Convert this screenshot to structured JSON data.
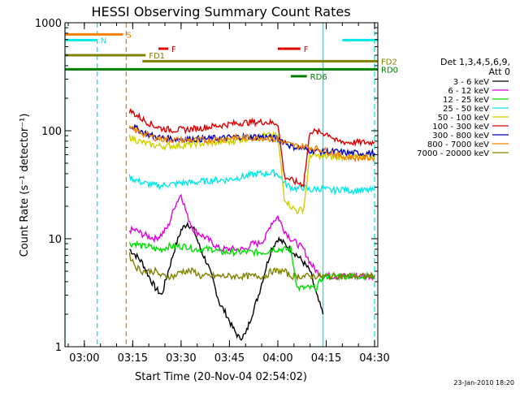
{
  "chart_data": {
    "type": "line",
    "title": "HESSI Observing Summary Count Rates",
    "xlabel": "Start Time (20-Nov-04 02:54:02)",
    "ylabel": "Count Rate (s⁻¹ detector⁻¹)",
    "yscale": "log",
    "ylim": [
      1,
      1000
    ],
    "xlim_minutes": [
      0,
      97
    ],
    "x_ticks": [
      {
        "label": "03:00",
        "minute": 6
      },
      {
        "label": "03:15",
        "minute": 21
      },
      {
        "label": "03:30",
        "minute": 36
      },
      {
        "label": "03:45",
        "minute": 51
      },
      {
        "label": "04:00",
        "minute": 66
      },
      {
        "label": "04:15",
        "minute": 81
      },
      {
        "label": "04:30",
        "minute": 96
      }
    ],
    "y_ticks": [
      {
        "label": "1",
        "value": 1
      },
      {
        "label": "10",
        "value": 10
      },
      {
        "label": "100",
        "value": 100
      },
      {
        "label": "1000",
        "value": 1000
      }
    ],
    "legend": {
      "position": "right",
      "header": [
        "Det 1,3,4,5,6,9,",
        "Att 0"
      ],
      "entries": [
        {
          "label": "3 - 6 keV",
          "color": "#000000"
        },
        {
          "label": "6 - 12 keV",
          "color": "#e000e0"
        },
        {
          "label": "12 - 25 keV",
          "color": "#00e000"
        },
        {
          "label": "25 - 50 keV",
          "color": "#00e8e8"
        },
        {
          "label": "50 - 100 keV",
          "color": "#d0d000"
        },
        {
          "label": "100 - 300 keV",
          "color": "#e00000"
        },
        {
          "label": "300 - 800 keV",
          "color": "#0000c0"
        },
        {
          "label": "800 - 7000 keV",
          "color": "#f08000"
        },
        {
          "label": "7000 - 20000 keV",
          "color": "#808000"
        }
      ]
    },
    "flags": [
      {
        "label": "S",
        "color": "#f08000",
        "start": 0,
        "end": 18,
        "level": 780
      },
      {
        "label": "N",
        "color": "#00e8e8",
        "start": 0,
        "end": 10,
        "level": 690
      },
      {
        "label": "F",
        "color": "#e00000",
        "start": 29,
        "end": 32,
        "level": 575
      },
      {
        "label": "F",
        "color": "#e00000",
        "start": 66,
        "end": 73,
        "level": 575
      },
      {
        "label": "",
        "color": "#00e8e8",
        "start": 86,
        "end": 97,
        "level": 690
      },
      {
        "label": "FD1",
        "color": "#808000",
        "start": 0,
        "end": 25,
        "level": 500
      },
      {
        "label": "FD2",
        "color": "#808000",
        "start": 24,
        "end": 97,
        "level": 440
      },
      {
        "label": "RD0",
        "color": "#008000",
        "start": 0,
        "end": 97,
        "level": 370
      },
      {
        "label": "RD6",
        "color": "#008000",
        "start": 70,
        "end": 75,
        "level": 320
      }
    ],
    "vlines": [
      {
        "minute": 0,
        "color": "#00e8e8"
      },
      {
        "minute": 10,
        "color": "#00e8e8",
        "dashed": true
      },
      {
        "minute": 19,
        "color": "#f08000",
        "dashed": true
      },
      {
        "minute": 80,
        "color": "#00e8e8"
      },
      {
        "minute": 96,
        "color": "#00e8e8",
        "dashed": true
      }
    ],
    "series": [
      {
        "name": "3 - 6 keV",
        "color": "#000000",
        "x": [
          20,
          22,
          24,
          26,
          28,
          30,
          32,
          34,
          36,
          38,
          40,
          42,
          44,
          46,
          48,
          50,
          52,
          54,
          56,
          58,
          60,
          62,
          64,
          66,
          68,
          70,
          72,
          74,
          76,
          78,
          80
        ],
        "y": [
          8,
          7,
          6,
          4.5,
          3.5,
          3,
          5,
          8,
          12,
          14,
          12,
          8,
          6,
          4,
          2.5,
          2,
          1.5,
          1.2,
          1.3,
          2,
          3,
          5,
          8,
          10,
          9,
          8,
          7,
          6,
          5,
          3,
          2
        ]
      },
      {
        "name": "6 - 12 keV",
        "color": "#e000e0",
        "x": [
          20,
          22,
          24,
          26,
          28,
          30,
          32,
          34,
          36,
          38,
          40,
          42,
          44,
          46,
          48,
          50,
          52,
          54,
          56,
          58,
          60,
          62,
          64,
          66,
          68,
          70,
          72,
          74,
          76,
          78,
          80,
          82,
          84,
          86,
          88,
          90,
          92,
          94,
          96
        ],
        "y": [
          12,
          12,
          11,
          10.5,
          10,
          11,
          13,
          20,
          26,
          16,
          12,
          11,
          10,
          9,
          8,
          8,
          8,
          8,
          8,
          9,
          9,
          10,
          14,
          16,
          12,
          10,
          9,
          8,
          6,
          5,
          4.5,
          4.5,
          4.5,
          4.5,
          4.5,
          4.5,
          4.5,
          4.5,
          4.5
        ]
      },
      {
        "name": "12 - 25 keV",
        "color": "#00e000",
        "x": [
          20,
          22,
          24,
          26,
          28,
          30,
          32,
          34,
          36,
          38,
          40,
          42,
          44,
          46,
          48,
          50,
          52,
          54,
          56,
          58,
          60,
          62,
          64,
          66,
          68,
          70,
          72,
          74,
          76,
          78,
          80,
          82,
          84,
          86,
          88,
          90,
          92,
          94,
          96
        ],
        "y": [
          9,
          9,
          8.5,
          8.5,
          8,
          8,
          8.5,
          8.5,
          8.5,
          8.5,
          8,
          8,
          8,
          8,
          7.5,
          7.5,
          7.5,
          7.5,
          7.5,
          7.5,
          7.5,
          7.5,
          8,
          8,
          8,
          8,
          3.5,
          3.5,
          3.5,
          3.5,
          4.5,
          4.5,
          4.5,
          4.5,
          4.5,
          4.5,
          4.5,
          4.5,
          4.5
        ]
      },
      {
        "name": "25 - 50 keV",
        "color": "#00e8e8",
        "x": [
          20,
          22,
          24,
          26,
          28,
          30,
          32,
          34,
          36,
          38,
          40,
          42,
          44,
          46,
          48,
          50,
          52,
          54,
          56,
          58,
          60,
          62,
          64,
          66,
          68,
          70,
          72,
          74,
          76,
          78,
          80,
          82,
          84,
          86,
          88,
          90,
          92,
          94,
          96
        ],
        "y": [
          37,
          35,
          33,
          32,
          31,
          31,
          32,
          32,
          33,
          33,
          33,
          34,
          34,
          35,
          35,
          35,
          36,
          37,
          38,
          39,
          40,
          40,
          41,
          40,
          33,
          30,
          29,
          30,
          28,
          29,
          29,
          28,
          28,
          29,
          28,
          28,
          28,
          28,
          28
        ]
      },
      {
        "name": "50 - 100 keV",
        "color": "#d0d000",
        "x": [
          20,
          22,
          24,
          26,
          28,
          30,
          32,
          34,
          36,
          38,
          40,
          42,
          44,
          46,
          48,
          50,
          52,
          54,
          56,
          58,
          60,
          62,
          64,
          66,
          68,
          70,
          72,
          74,
          76,
          78,
          80,
          82,
          84,
          86,
          88,
          90,
          92,
          94,
          96
        ],
        "y": [
          88,
          82,
          78,
          75,
          73,
          72,
          72,
          73,
          73,
          74,
          75,
          76,
          76,
          77,
          78,
          79,
          80,
          82,
          84,
          86,
          88,
          90,
          90,
          88,
          24,
          20,
          18,
          19,
          60,
          58,
          58,
          57,
          57,
          57,
          57,
          57,
          57,
          57,
          57
        ]
      },
      {
        "name": "100 - 300 keV",
        "color": "#e00000",
        "x": [
          20,
          22,
          24,
          26,
          28,
          30,
          32,
          34,
          36,
          38,
          40,
          42,
          44,
          46,
          48,
          50,
          52,
          54,
          56,
          58,
          60,
          62,
          64,
          66,
          68,
          70,
          72,
          74,
          76,
          78,
          80,
          82,
          84,
          86,
          88,
          90,
          92,
          94,
          96
        ],
        "y": [
          155,
          140,
          128,
          118,
          110,
          105,
          103,
          102,
          102,
          103,
          104,
          106,
          108,
          110,
          112,
          114,
          116,
          118,
          119,
          120,
          120,
          121,
          118,
          118,
          38,
          35,
          33,
          32,
          100,
          97,
          95,
          93,
          80,
          79,
          78,
          78,
          78,
          78,
          78
        ]
      },
      {
        "name": "300 - 800 keV",
        "color": "#0000c0",
        "x": [
          20,
          22,
          24,
          26,
          28,
          30,
          32,
          34,
          36,
          38,
          40,
          42,
          44,
          46,
          48,
          50,
          52,
          54,
          56,
          58,
          60,
          62,
          64,
          66,
          68,
          70,
          72,
          74,
          76,
          78,
          80,
          82,
          84,
          86,
          88,
          90,
          92,
          94,
          96
        ],
        "y": [
          112,
          105,
          98,
          92,
          88,
          86,
          85,
          84,
          84,
          84,
          84,
          84,
          84,
          85,
          85,
          86,
          87,
          88,
          88,
          88,
          88,
          88,
          86,
          84,
          80,
          72,
          70,
          68,
          66,
          65,
          64,
          64,
          64,
          63,
          62,
          62,
          62,
          62,
          62
        ]
      },
      {
        "name": "800 - 7000 keV",
        "color": "#f08000",
        "x": [
          20,
          22,
          24,
          26,
          28,
          30,
          32,
          34,
          36,
          38,
          40,
          42,
          44,
          46,
          48,
          50,
          52,
          54,
          56,
          58,
          60,
          62,
          64,
          66,
          68,
          70,
          72,
          74,
          76,
          78,
          80,
          82,
          84,
          86,
          88,
          90,
          92,
          94,
          96
        ],
        "y": [
          105,
          100,
          95,
          90,
          86,
          84,
          83,
          82,
          82,
          82,
          82,
          82,
          82,
          83,
          84,
          85,
          86,
          86,
          86,
          86,
          86,
          86,
          84,
          82,
          78,
          74,
          72,
          72,
          70,
          68,
          66,
          64,
          60,
          58,
          57,
          56,
          56,
          56,
          56
        ]
      },
      {
        "name": "7000 - 20000 keV",
        "color": "#808000",
        "x": [
          20,
          22,
          24,
          26,
          28,
          30,
          32,
          34,
          36,
          38,
          40,
          42,
          44,
          46,
          48,
          50,
          52,
          54,
          56,
          58,
          60,
          62,
          64,
          66,
          68,
          70,
          72,
          74,
          76,
          78,
          80,
          82,
          84,
          86,
          88,
          90,
          92,
          94,
          96
        ],
        "y": [
          7,
          5.5,
          5,
          5,
          5,
          4.5,
          4.5,
          4.5,
          5,
          5,
          5,
          4.5,
          4.5,
          4.5,
          4.5,
          4.5,
          4.5,
          4.5,
          4.5,
          4.5,
          4.5,
          4.5,
          5,
          5,
          5,
          4.5,
          4.5,
          4.5,
          4.5,
          4.5,
          4.5,
          4.5,
          4.5,
          4.5,
          4.5,
          4.5,
          4.5,
          4.5,
          4.5
        ]
      }
    ]
  },
  "footer": {
    "date_stamp": "23-Jan-2010 18:20"
  }
}
